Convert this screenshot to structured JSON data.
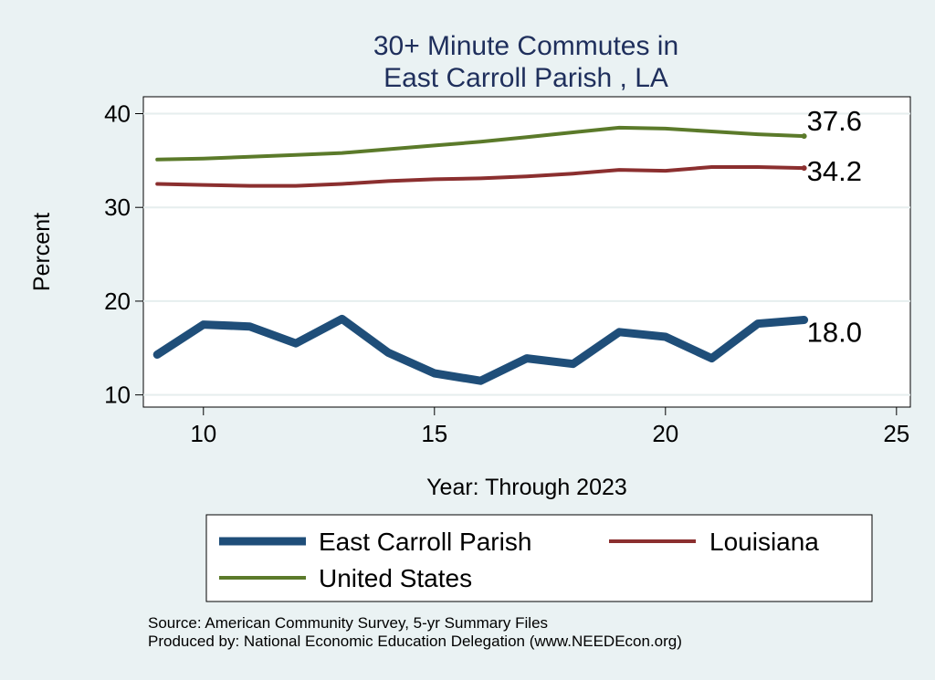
{
  "chart_data": {
    "type": "line",
    "title_lines": [
      "30+ Minute Commutes in",
      "East Carroll Parish , LA"
    ],
    "xlabel": "Year: Through 2023",
    "ylabel": "Percent",
    "xlim": [
      8.7,
      25.3
    ],
    "ylim": [
      8.7,
      41.8
    ],
    "x_ticks": [
      10,
      15,
      20,
      25
    ],
    "y_ticks": [
      10,
      20,
      30,
      40
    ],
    "grid": true,
    "legend_position": "bottom",
    "x": [
      9,
      10,
      11,
      12,
      13,
      14,
      15,
      16,
      17,
      18,
      19,
      20,
      21,
      22,
      23
    ],
    "series": [
      {
        "name": "East Carroll Parish",
        "color": "#1f4e79",
        "width": 9,
        "end_label": "18.0",
        "values": [
          14.3,
          17.5,
          17.3,
          15.5,
          18.1,
          14.5,
          12.3,
          11.5,
          13.9,
          13.3,
          16.7,
          16.2,
          13.9,
          17.6,
          18.0
        ]
      },
      {
        "name": "Louisiana",
        "color": "#8b2f2f",
        "width": 4,
        "end_label": "34.2",
        "values": [
          32.5,
          32.4,
          32.3,
          32.3,
          32.5,
          32.8,
          33.0,
          33.1,
          33.3,
          33.6,
          34.0,
          33.9,
          34.3,
          34.3,
          34.2
        ]
      },
      {
        "name": "United States",
        "color": "#5b7a2a",
        "width": 4,
        "end_label": "37.6",
        "values": [
          35.1,
          35.2,
          35.4,
          35.6,
          35.8,
          36.2,
          36.6,
          37.0,
          37.5,
          38.0,
          38.5,
          38.4,
          38.1,
          37.8,
          37.6
        ]
      }
    ],
    "notes": [
      "Source: American Community Survey, 5-yr Summary Files",
      "Produced by: National Economic Education Delegation (www.NEEDEcon.org)"
    ]
  }
}
